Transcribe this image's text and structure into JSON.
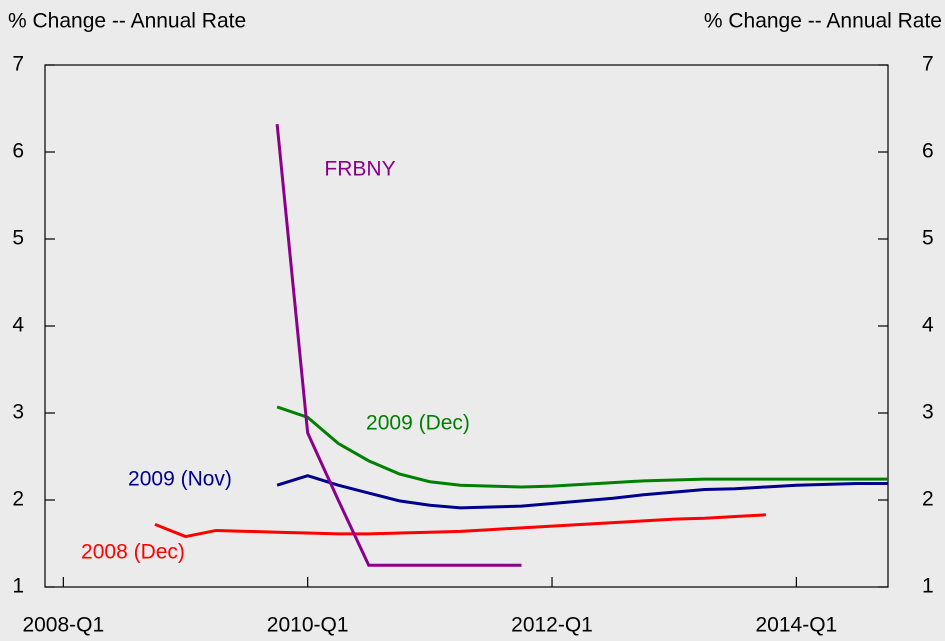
{
  "chart_data": {
    "type": "line",
    "ylabel": "% Change -- Annual Rate",
    "y2label": "% Change -- Annual Rate",
    "x": [
      0,
      1,
      2,
      3,
      4,
      5,
      6,
      7,
      8,
      9,
      10,
      11,
      12,
      13,
      14,
      15,
      16,
      17,
      18,
      19,
      20,
      21,
      22,
      23,
      24,
      25,
      26,
      27
    ],
    "xlim": [
      -0.6,
      27
    ],
    "xticks": [
      {
        "value": 0,
        "label": "2008-Q1"
      },
      {
        "value": 8,
        "label": "2010-Q1"
      },
      {
        "value": 16,
        "label": "2012-Q1"
      },
      {
        "value": 24,
        "label": "2014-Q1"
      }
    ],
    "ylim": [
      1,
      7
    ],
    "yticks": [
      1,
      2,
      3,
      4,
      5,
      6,
      7
    ],
    "y2lim": [
      1,
      7
    ],
    "y2ticks": [
      1,
      2,
      3,
      4,
      5,
      6,
      7
    ],
    "series": [
      {
        "name": "2008 (Dec)",
        "color": "#ff0000",
        "values": [
          null,
          null,
          null,
          1.72,
          1.58,
          1.65,
          1.64,
          1.63,
          1.62,
          1.61,
          1.61,
          1.62,
          1.63,
          1.64,
          1.66,
          1.68,
          1.7,
          1.72,
          1.74,
          1.76,
          1.78,
          1.79,
          1.81,
          1.83,
          null,
          null,
          null,
          null
        ]
      },
      {
        "name": "2009 (Nov)",
        "color": "#00008b",
        "values": [
          null,
          null,
          null,
          null,
          null,
          null,
          null,
          2.17,
          2.28,
          2.17,
          2.08,
          1.99,
          1.94,
          1.91,
          1.92,
          1.93,
          1.96,
          1.99,
          2.02,
          2.06,
          2.09,
          2.12,
          2.13,
          2.15,
          2.17,
          2.18,
          2.19,
          2.19
        ]
      },
      {
        "name": "2009 (Dec)",
        "color": "#008000",
        "values": [
          null,
          null,
          null,
          null,
          null,
          null,
          null,
          3.07,
          2.95,
          2.65,
          2.45,
          2.3,
          2.21,
          2.17,
          2.16,
          2.15,
          2.16,
          2.18,
          2.2,
          2.22,
          2.23,
          2.24,
          2.24,
          2.24,
          2.24,
          2.24,
          2.24,
          2.24
        ]
      },
      {
        "name": "FRBNY",
        "color": "#8b008b",
        "values": [
          null,
          null,
          null,
          null,
          null,
          null,
          null,
          6.32,
          2.77,
          2.0,
          1.25,
          1.25,
          1.25,
          1.25,
          1.25,
          1.25,
          null,
          null,
          null,
          null,
          null,
          null,
          null,
          null,
          null,
          null,
          null,
          null
        ]
      }
    ]
  }
}
